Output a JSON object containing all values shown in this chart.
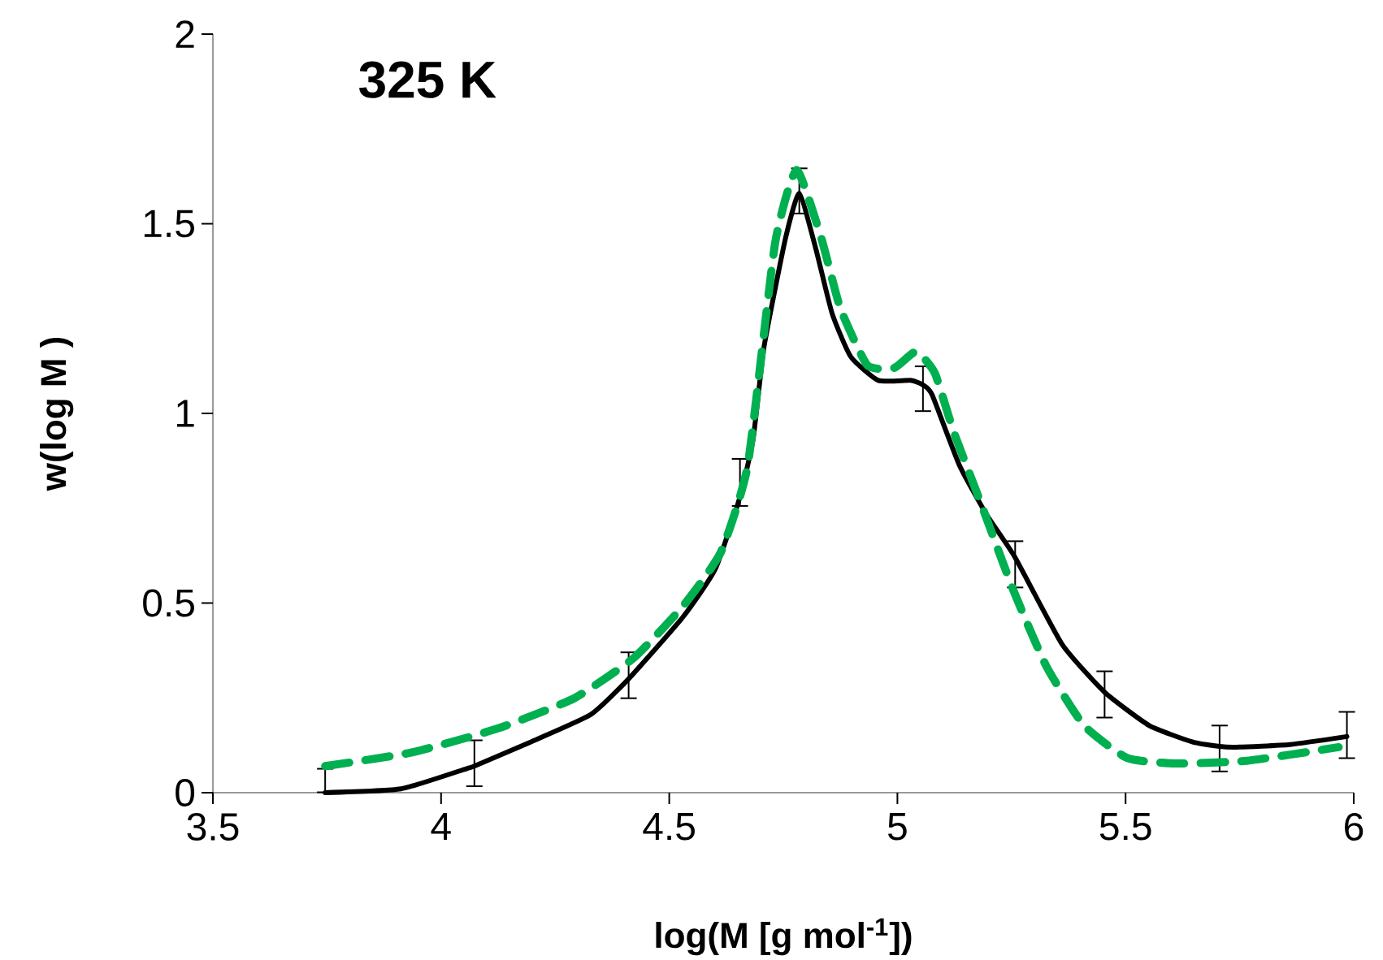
{
  "chart_data": {
    "type": "line",
    "title": "325 K",
    "xlabel": "log(M [g mol$^{-1}$])",
    "ylabel": "w(log M )",
    "xlim": [
      3.5,
      6
    ],
    "xticks": [
      3.5,
      4,
      4.5,
      5,
      5.5,
      6
    ],
    "ylim": [
      0,
      2
    ],
    "yticks": [
      0,
      0.5,
      1,
      1.5,
      2
    ],
    "marker": "none",
    "series": [
      {
        "color": "#000000",
        "line_style": "solid",
        "x": [
          3.746,
          3.912,
          4.055,
          4.073,
          4.197,
          4.328,
          4.411,
          4.53,
          4.601,
          4.655,
          4.684,
          4.708,
          4.755,
          4.785,
          4.821,
          4.857,
          4.898,
          4.958,
          5.029,
          5.056,
          5.076,
          5.136,
          5.195,
          5.258,
          5.361,
          5.454,
          5.552,
          5.646,
          5.706,
          5.742,
          5.86,
          5.985
        ],
        "values": [
          0.0,
          0.01,
          0.063,
          0.07,
          0.134,
          0.206,
          0.3,
          0.463,
          0.59,
          0.78,
          0.934,
          1.177,
          1.463,
          1.58,
          1.435,
          1.263,
          1.149,
          1.087,
          1.087,
          1.075,
          1.049,
          0.863,
          0.734,
          0.62,
          0.391,
          0.265,
          0.177,
          0.134,
          0.122,
          0.12,
          0.127,
          0.148
        ],
        "errors": [
          [
            0.001,
            0.063
          ],
          null,
          null,
          [
            0.017,
            0.138
          ],
          null,
          null,
          [
            0.249,
            0.37
          ],
          null,
          null,
          [
            0.756,
            0.88
          ],
          null,
          null,
          null,
          [
            1.527,
            1.646
          ],
          null,
          null,
          null,
          null,
          null,
          [
            1.006,
            1.124
          ],
          null,
          null,
          null,
          [
            0.541,
            0.663
          ],
          null,
          [
            0.198,
            0.32
          ],
          null,
          null,
          [
            0.056,
            0.177
          ],
          null,
          null,
          [
            0.091,
            0.213
          ]
        ]
      },
      {
        "color": "#00b050",
        "line_style": "dashed",
        "x": [
          3.746,
          3.936,
          4.126,
          4.292,
          4.423,
          4.53,
          4.613,
          4.672,
          4.732,
          4.779,
          4.833,
          4.875,
          4.934,
          4.993,
          5.041,
          5.082,
          5.124,
          5.183,
          5.254,
          5.326,
          5.409,
          5.504,
          5.611,
          5.765,
          5.967
        ],
        "values": [
          0.07,
          0.106,
          0.17,
          0.249,
          0.356,
          0.492,
          0.634,
          0.863,
          1.449,
          1.642,
          1.463,
          1.277,
          1.127,
          1.12,
          1.163,
          1.106,
          0.949,
          0.763,
          0.534,
          0.334,
          0.177,
          0.091,
          0.077,
          0.084,
          0.12
        ]
      }
    ]
  }
}
